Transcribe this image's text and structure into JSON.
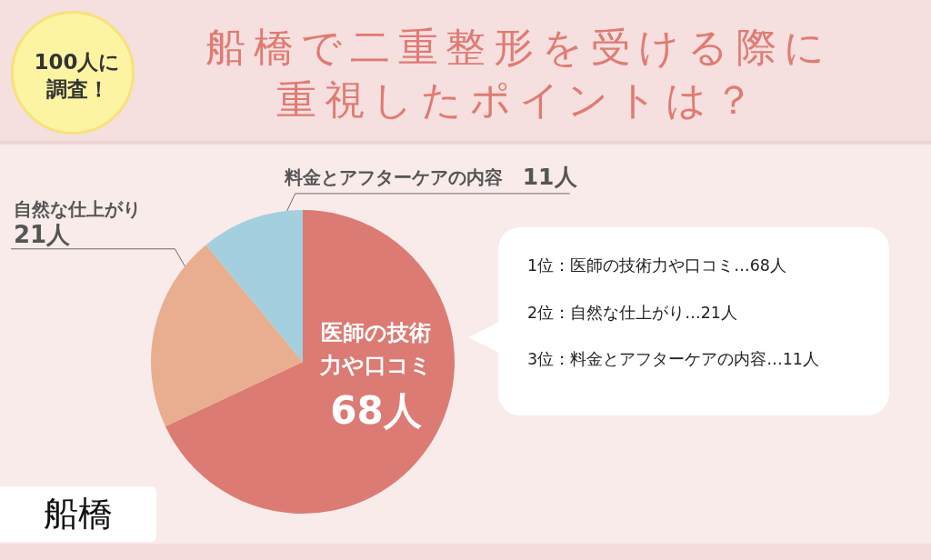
{
  "chart_data": {
    "type": "pie",
    "title": "船橋で二重整形を受ける際に重視したポイントは？",
    "categories": [
      "医師の技術力や口コミ",
      "自然な仕上がり",
      "料金とアフターケアの内容"
    ],
    "values": [
      68,
      21,
      11
    ],
    "colors": [
      "#db7b74",
      "#e8ae8f",
      "#a3cfdf"
    ],
    "value_labels": [
      "68人",
      "21人",
      "11人"
    ],
    "legend": false,
    "annotations": [
      "100人に調査！",
      "1位：医師の技術力や口コミ…68人",
      "2位：自然な仕上がり…21人",
      "3位：料金とアフターケアの内容…11人",
      "船橋"
    ]
  }
}
